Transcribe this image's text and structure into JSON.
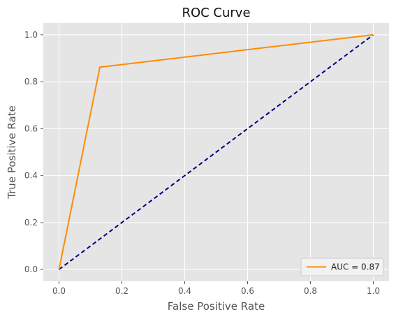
{
  "chart_data": {
    "type": "line",
    "title": "ROC Curve",
    "xlabel": "False Positive Rate",
    "ylabel": "True Positive Rate",
    "xlim": [
      -0.05,
      1.05
    ],
    "ylim": [
      -0.05,
      1.05
    ],
    "xticks": [
      "0.0",
      "0.2",
      "0.4",
      "0.6",
      "0.8",
      "1.0"
    ],
    "yticks": [
      "0.0",
      "0.2",
      "0.4",
      "0.6",
      "0.8",
      "1.0"
    ],
    "grid": true,
    "legend_position": "lower-right",
    "background": "#e5e5e5",
    "series": [
      {
        "name": "AUC = 0.87",
        "color": "#ff8c00",
        "style": "solid",
        "x": [
          0.0,
          0.13,
          1.0
        ],
        "y": [
          0.0,
          0.862,
          1.0
        ]
      },
      {
        "color": "#000080",
        "style": "dashed",
        "x": [
          0.0,
          1.0
        ],
        "y": [
          0.0,
          1.0
        ]
      }
    ]
  }
}
